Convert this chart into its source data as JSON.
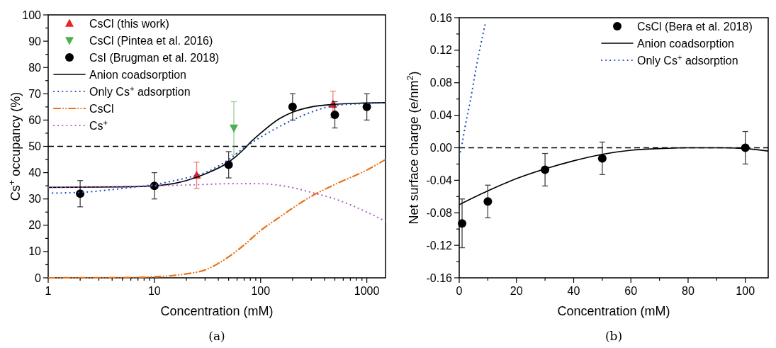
{
  "chart_data": [
    {
      "type": "line",
      "xlabel": "Concentration (mM)",
      "ylabel": "Cs$^{+}$ occupancy (%)",
      "log": "x",
      "xlim": [
        1,
        1500
      ],
      "ylim": [
        0,
        100
      ],
      "xticks": [
        1,
        {
          "value": 2,
          "label": null
        },
        {
          "value": 3,
          "label": null
        },
        {
          "value": 4,
          "label": null
        },
        {
          "value": 5,
          "label": null
        },
        {
          "value": 6,
          "label": null
        },
        {
          "value": 7,
          "label": null
        },
        {
          "value": 8,
          "label": null
        },
        {
          "value": 9,
          "label": null
        },
        10,
        {
          "value": 20,
          "label": null
        },
        {
          "value": 30,
          "label": null
        },
        {
          "value": 40,
          "label": null
        },
        {
          "value": 50,
          "label": null
        },
        {
          "value": 60,
          "label": null
        },
        {
          "value": 70,
          "label": null
        },
        {
          "value": 80,
          "label": null
        },
        {
          "value": 90,
          "label": null
        },
        100,
        {
          "value": 200,
          "label": null
        },
        {
          "value": 300,
          "label": null
        },
        {
          "value": 400,
          "label": null
        },
        {
          "value": 500,
          "label": null
        },
        {
          "value": 600,
          "label": null
        },
        {
          "value": 700,
          "label": null
        },
        {
          "value": 800,
          "label": null
        },
        {
          "value": 900,
          "label": null
        },
        1000
      ],
      "yticks": [
        0,
        {
          "value": 5,
          "label": null
        },
        10,
        {
          "value": 15,
          "label": null
        },
        20,
        {
          "value": 25,
          "label": null
        },
        30,
        {
          "value": 35,
          "label": null
        },
        40,
        {
          "value": 45,
          "label": null
        },
        50,
        {
          "value": 55,
          "label": null
        },
        60,
        {
          "value": 65,
          "label": null
        },
        70,
        {
          "value": 75,
          "label": null
        },
        80,
        {
          "value": 85,
          "label": null
        },
        90,
        {
          "value": 95,
          "label": null
        },
        100
      ],
      "legend": "top left",
      "ref_lines": [
        {
          "axis": "y",
          "value": 50,
          "color": "#000000",
          "line_style": "dashed"
        }
      ],
      "annotations": [
        "(a)"
      ],
      "series": [
        {
          "name": "CsCl (this work)",
          "type": "scatter",
          "marker": "triangle",
          "color": "#e8242a",
          "x": [
            25,
            480
          ],
          "values": [
            39,
            66
          ],
          "errors": [
            5,
            5
          ]
        },
        {
          "name": "CsCl (Pintea et al. 2016)",
          "type": "scatter",
          "marker": "triangle-down",
          "color": "#4caf50",
          "x": [
            56
          ],
          "values": [
            57
          ],
          "errors": [
            10
          ]
        },
        {
          "name": "CsI (Brugman et al. 2018)",
          "type": "scatter",
          "marker": "circle",
          "color": "#000000",
          "x": [
            2,
            10,
            50,
            200,
            500,
            1000
          ],
          "values": [
            32,
            35,
            43,
            65,
            62,
            65
          ],
          "errors": [
            5,
            5,
            5,
            5,
            5,
            5
          ]
        },
        {
          "name": "Anion coadsorption",
          "type": "line",
          "line_style": "solid",
          "color": "#000000",
          "x": [
            1,
            5,
            10,
            20,
            30,
            50,
            70,
            80,
            100,
            150,
            200,
            300,
            500,
            1000,
            1500
          ],
          "values": [
            34.4,
            34.6,
            35,
            37,
            39.5,
            44,
            49,
            51.5,
            55,
            60.5,
            63,
            65,
            66,
            66.5,
            66.6
          ]
        },
        {
          "name": "Only Cs$^{+}$ adsorption",
          "type": "line",
          "line_style": "dotted",
          "color": "#1f4fbf",
          "x": [
            1,
            2,
            5,
            10,
            20,
            30,
            50,
            70,
            100,
            200,
            300,
            500,
            1000,
            1500
          ],
          "values": [
            32.2,
            32.5,
            34,
            35.5,
            38,
            40,
            45,
            49.5,
            53.5,
            60,
            63,
            65.5,
            66.3,
            66.6
          ]
        },
        {
          "name": "CsCl",
          "type": "line",
          "line_style": "dashdot",
          "color": "#e8731a",
          "x": [
            1,
            5,
            10,
            20,
            30,
            50,
            70,
            100,
            150,
            200,
            300,
            500,
            1000,
            1500
          ],
          "values": [
            0,
            0.1,
            0.4,
            1.5,
            3,
            8,
            12.5,
            18,
            23,
            26.5,
            31,
            35.5,
            41,
            45
          ]
        },
        {
          "name": "Cs$^{+}$",
          "type": "line",
          "line_style": "dotted",
          "color": "#b05cc8",
          "x": [
            1,
            10,
            30,
            50,
            100,
            150,
            200,
            300,
            500,
            1000,
            1500
          ],
          "values": [
            34.4,
            35,
            35.5,
            35.8,
            35.8,
            35.2,
            34.3,
            32.5,
            30,
            25,
            21.5
          ]
        }
      ]
    },
    {
      "type": "line",
      "xlabel": "Concentration (mM)",
      "ylabel": "Net surface charge  (e/nm$^{2}$)",
      "xlim": [
        0,
        108
      ],
      "ylim": [
        -0.16,
        0.16
      ],
      "xticks": [
        0,
        {
          "value": 10,
          "label": null
        },
        20,
        {
          "value": 30,
          "label": null
        },
        40,
        {
          "value": 50,
          "label": null
        },
        60,
        {
          "value": 70,
          "label": null
        },
        80,
        {
          "value": 90,
          "label": null
        },
        100
      ],
      "yticks": [
        -0.16,
        {
          "value": -0.14,
          "label": null
        },
        -0.12,
        {
          "value": -0.1,
          "label": null
        },
        -0.08,
        {
          "value": -0.06,
          "label": null
        },
        -0.04,
        {
          "value": -0.02,
          "label": null
        },
        {
          "value": 0,
          "label": "0.00"
        },
        {
          "value": 0.02,
          "label": null
        },
        0.04,
        {
          "value": 0.06,
          "label": null
        },
        0.08,
        {
          "value": 0.1,
          "label": null
        },
        0.12,
        {
          "value": 0.14,
          "label": null
        },
        0.16
      ],
      "legend": "top right",
      "ref_lines": [
        {
          "axis": "y",
          "value": 0,
          "color": "#000000",
          "line_style": "dashed"
        }
      ],
      "annotations": [
        "(b)"
      ],
      "series": [
        {
          "name": "CsCl (Bera et al. 2018)",
          "type": "scatter",
          "marker": "circle",
          "color": "#000000",
          "x": [
            1,
            10,
            30,
            50,
            100
          ],
          "values": [
            -0.093,
            -0.066,
            -0.027,
            -0.013,
            0
          ],
          "errors": [
            0.03,
            0.02,
            0.02,
            0.02,
            0.02
          ]
        },
        {
          "name": "Anion coadsorption",
          "type": "line",
          "line_style": "solid",
          "color": "#000000",
          "x": [
            0,
            10,
            20,
            30,
            40,
            50,
            60,
            70,
            80,
            90,
            100,
            108
          ],
          "values": [
            -0.07,
            -0.053,
            -0.038,
            -0.026,
            -0.016,
            -0.008,
            -0.003,
            -0.001,
            0,
            0,
            -0.001,
            -0.004
          ]
        },
        {
          "name": "Only Cs$^{+}$ adsorption",
          "type": "line",
          "line_style": "dotted",
          "color": "#1f4fbf",
          "x": [
            0,
            1,
            2,
            4,
            6,
            8,
            9
          ],
          "values": [
            -0.01,
            0.005,
            0.025,
            0.06,
            0.1,
            0.135,
            0.151
          ]
        }
      ]
    }
  ]
}
